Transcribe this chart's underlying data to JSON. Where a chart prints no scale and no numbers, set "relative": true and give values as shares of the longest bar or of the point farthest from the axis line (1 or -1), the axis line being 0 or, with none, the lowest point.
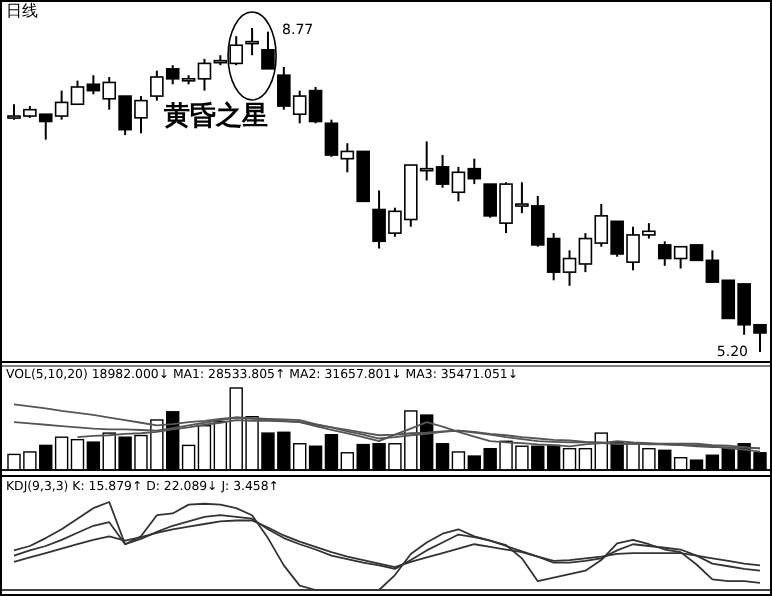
{
  "chart_data": [
    {
      "type": "candlestick",
      "title": "日线",
      "categories": [
        null,
        null,
        null,
        null,
        null,
        null,
        null,
        null,
        null,
        null,
        null,
        null,
        null,
        null,
        null,
        null,
        null,
        null,
        null,
        null,
        null,
        null,
        null,
        null,
        null,
        null,
        null,
        null,
        null,
        null,
        null,
        null,
        null,
        null,
        null,
        null,
        null,
        null,
        null,
        null,
        null,
        null,
        null,
        null,
        null,
        null,
        null,
        null
      ],
      "ohlc": [
        [
          7.8,
          7.93,
          7.76,
          7.8
        ],
        [
          7.8,
          7.91,
          7.78,
          7.87
        ],
        [
          7.82,
          7.82,
          7.54,
          7.74
        ],
        [
          7.8,
          8.08,
          7.76,
          7.95
        ],
        [
          7.93,
          8.19,
          7.93,
          8.12
        ],
        [
          8.15,
          8.25,
          8.04,
          8.08
        ],
        [
          7.99,
          8.23,
          7.87,
          8.17
        ],
        [
          8.02,
          8.02,
          7.59,
          7.65
        ],
        [
          7.78,
          8.02,
          7.61,
          7.97
        ],
        [
          8.02,
          8.3,
          7.97,
          8.23
        ],
        [
          8.32,
          8.36,
          8.15,
          8.21
        ],
        [
          8.21,
          8.25,
          8.15,
          8.21
        ],
        [
          8.21,
          8.43,
          8.08,
          8.38
        ],
        [
          8.4,
          8.47,
          8.36,
          8.41
        ],
        [
          8.38,
          8.68,
          8.36,
          8.58
        ],
        [
          8.62,
          8.77,
          8.47,
          8.62
        ],
        [
          8.53,
          8.73,
          8.32,
          8.32
        ],
        [
          8.25,
          8.34,
          7.87,
          7.91
        ],
        [
          7.82,
          8.08,
          7.72,
          8.02
        ],
        [
          8.08,
          8.12,
          7.72,
          7.74
        ],
        [
          7.72,
          7.76,
          7.35,
          7.37
        ],
        [
          7.33,
          7.5,
          7.18,
          7.41
        ],
        [
          7.41,
          7.41,
          6.86,
          6.86
        ],
        [
          6.77,
          6.98,
          6.34,
          6.42
        ],
        [
          6.51,
          6.79,
          6.47,
          6.75
        ],
        [
          6.66,
          7.26,
          6.58,
          7.26
        ],
        [
          7.22,
          7.52,
          7.09,
          7.22
        ],
        [
          7.24,
          7.37,
          7.01,
          7.05
        ],
        [
          6.96,
          7.24,
          6.86,
          7.18
        ],
        [
          7.22,
          7.33,
          7.05,
          7.11
        ],
        [
          7.05,
          7.05,
          6.68,
          6.7
        ],
        [
          6.62,
          7.07,
          6.51,
          7.05
        ],
        [
          6.83,
          7.07,
          6.73,
          6.83
        ],
        [
          6.81,
          6.92,
          6.36,
          6.38
        ],
        [
          6.45,
          6.51,
          5.99,
          6.08
        ],
        [
          6.08,
          6.32,
          5.93,
          6.23
        ],
        [
          6.17,
          6.51,
          6.08,
          6.45
        ],
        [
          6.4,
          6.83,
          6.36,
          6.7
        ],
        [
          6.64,
          6.64,
          6.25,
          6.28
        ],
        [
          6.19,
          6.58,
          6.1,
          6.49
        ],
        [
          6.49,
          6.62,
          6.45,
          6.53
        ],
        [
          6.38,
          6.42,
          6.15,
          6.23
        ],
        [
          6.23,
          6.36,
          6.12,
          6.36
        ],
        [
          6.38,
          6.38,
          6.21,
          6.21
        ],
        [
          6.21,
          6.32,
          5.97,
          5.97
        ],
        [
          5.99,
          5.99,
          5.57,
          5.57
        ],
        [
          5.95,
          5.95,
          5.39,
          5.5
        ],
        [
          5.5,
          5.5,
          5.2,
          5.41
        ]
      ],
      "annotations": [
        "8.77",
        "5.20",
        "黄昏之星"
      ]
    },
    {
      "type": "bar",
      "relative": true,
      "title": "VOL(5,10,20) 18982.000↓ MA1: 28533.805↑ MA2: 31657.801↓ MA3: 35471.051↓",
      "categories": [
        null,
        null,
        null,
        null,
        null,
        null,
        null,
        null,
        null,
        null,
        null,
        null,
        null,
        null,
        null,
        null,
        null,
        null,
        null,
        null,
        null,
        null,
        null,
        null,
        null,
        null,
        null,
        null,
        null,
        null,
        null,
        null,
        null,
        null,
        null,
        null,
        null,
        null,
        null,
        null,
        null,
        null,
        null,
        null,
        null,
        null,
        null,
        null
      ],
      "values": [
        0.19,
        0.22,
        0.3,
        0.4,
        0.37,
        0.34,
        0.45,
        0.4,
        0.42,
        0.61,
        0.71,
        0.3,
        0.54,
        0.59,
        1,
        0.65,
        0.45,
        0.46,
        0.32,
        0.29,
        0.43,
        0.21,
        0.31,
        0.32,
        0.32,
        0.72,
        0.67,
        0.32,
        0.22,
        0.17,
        0.26,
        0.35,
        0.29,
        0.29,
        0.3,
        0.26,
        0.26,
        0.45,
        0.34,
        0.33,
        0.26,
        0.24,
        0.15,
        0.12,
        0.18,
        0.26,
        0.32,
        0.21
      ],
      "colors": [
        "#ffffff",
        "#ffffff",
        "#000000",
        "#ffffff",
        "#ffffff",
        "#000000",
        "#ffffff",
        "#000000",
        "#ffffff",
        "#ffffff",
        "#000000",
        "#ffffff",
        "#ffffff",
        "#ffffff",
        "#ffffff",
        "#ffffff",
        "#000000",
        "#000000",
        "#ffffff",
        "#000000",
        "#000000",
        "#ffffff",
        "#000000",
        "#000000",
        "#ffffff",
        "#ffffff",
        "#000000",
        "#000000",
        "#ffffff",
        "#000000",
        "#000000",
        "#ffffff",
        "#ffffff",
        "#000000",
        "#000000",
        "#ffffff",
        "#ffffff",
        "#ffffff",
        "#000000",
        "#ffffff",
        "#ffffff",
        "#000000",
        "#ffffff",
        "#000000",
        "#000000",
        "#000000",
        "#000000",
        "#000000"
      ]
    },
    {
      "type": "line",
      "relative": true,
      "categories": [
        null,
        null,
        null,
        null,
        null,
        null,
        null,
        null,
        null,
        null,
        null,
        null,
        null,
        null,
        null,
        null,
        null,
        null,
        null,
        null,
        null,
        null,
        null,
        null,
        null,
        null,
        null,
        null,
        null,
        null,
        null,
        null,
        null,
        null,
        null,
        null,
        null,
        null,
        null,
        null,
        null,
        null,
        null,
        null,
        null,
        null,
        null,
        null
      ],
      "series": [
        {
          "color": "#555555",
          "values": [
            null,
            null,
            null,
            null,
            0.5,
            0.52,
            0.53,
            0.55,
            0.56,
            0.58,
            0.62,
            0.65,
            0.69,
            0.72,
            0.76,
            0.75,
            0.75,
            0.74,
            0.73,
            0.67,
            0.61,
            0.56,
            0.5,
            0.44,
            0.54,
            0.63,
            0.73,
            0.66,
            0.58,
            0.51,
            0.44,
            0.42,
            0.41,
            0.39,
            0.38,
            0.36,
            0.39,
            0.41,
            0.44,
            0.42,
            0.41,
            0.39,
            0.38,
            0.36,
            0.35,
            0.35,
            0.34,
            0.33
          ]
        },
        {
          "color": "#555555",
          "values": [
            0.73,
            0.71,
            0.69,
            0.67,
            0.65,
            0.63,
            0.62,
            0.62,
            0.61,
            0.6,
            0.64,
            0.68,
            0.72,
            0.76,
            0.8,
            0.79,
            0.78,
            0.77,
            0.76,
            0.7,
            0.65,
            0.59,
            0.54,
            0.48,
            0.5,
            0.53,
            0.55,
            0.58,
            0.6,
            0.58,
            0.55,
            0.53,
            0.5,
            0.48,
            0.46,
            0.45,
            0.43,
            0.42,
            0.4,
            0.4,
            0.39,
            0.39,
            0.38,
            0.38,
            0.36,
            0.33,
            0.31,
            0.28
          ]
        },
        {
          "color": "#555555",
          "values": [
            1,
            0.97,
            0.94,
            0.9,
            0.87,
            0.84,
            0.8,
            0.76,
            0.72,
            0.68,
            0.7,
            0.73,
            0.75,
            0.78,
            0.8,
            0.78,
            0.77,
            0.75,
            0.73,
            0.69,
            0.65,
            0.61,
            0.57,
            0.53,
            0.54,
            0.56,
            0.57,
            0.59,
            0.6,
            0.57,
            0.54,
            0.5,
            0.47,
            0.44,
            0.43,
            0.42,
            0.42,
            0.41,
            0.4,
            0.4,
            0.4,
            0.4,
            0.4,
            0.4,
            0.38,
            0.37,
            0.35,
            0.33
          ]
        }
      ]
    },
    {
      "type": "line",
      "relative": true,
      "title": "KDJ(9,3,3) K: 15.879↑ D: 22.089↓ J: 3.458↑",
      "categories": [
        null,
        null,
        null,
        null,
        null,
        null,
        null,
        null,
        null,
        null,
        null,
        null,
        null,
        null,
        null,
        null,
        null,
        null,
        null,
        null,
        null,
        null,
        null,
        null,
        null,
        null,
        null,
        null,
        null,
        null,
        null,
        null,
        null,
        null,
        null,
        null,
        null,
        null,
        null,
        null,
        null,
        null,
        null,
        null,
        null,
        null,
        null,
        null
      ],
      "series": [
        {
          "color": "#333333",
          "values": [
            0.45,
            0.5,
            0.59,
            0.69,
            0.81,
            0.93,
            1,
            0.52,
            0.61,
            0.85,
            0.87,
            0.97,
            0.98,
            0.97,
            0.93,
            0.85,
            0.59,
            0.28,
            0.05,
            0,
            0,
            0,
            0,
            0,
            0.17,
            0.41,
            0.54,
            0.64,
            0.69,
            0.61,
            0.56,
            0.51,
            0.36,
            0.1,
            0.14,
            0.18,
            0.22,
            0.34,
            0.53,
            0.57,
            0.52,
            0.46,
            0.43,
            0.29,
            0.12,
            0.1,
            0.1,
            0.08
          ]
        },
        {
          "color": "#333333",
          "values": [
            0.39,
            0.45,
            0.5,
            0.57,
            0.65,
            0.73,
            0.77,
            0.52,
            0.58,
            0.66,
            0.73,
            0.78,
            0.83,
            0.85,
            0.83,
            0.81,
            0.69,
            0.59,
            0.52,
            0.46,
            0.39,
            0.35,
            0.31,
            0.28,
            0.24,
            0.34,
            0.45,
            0.54,
            0.63,
            0.6,
            0.56,
            0.5,
            0.44,
            0.38,
            0.31,
            0.31,
            0.33,
            0.36,
            0.45,
            0.52,
            0.5,
            0.48,
            0.46,
            0.39,
            0.3,
            0.27,
            0.24,
            0.22
          ]
        },
        {
          "color": "#333333",
          "values": [
            0.32,
            0.37,
            0.42,
            0.47,
            0.52,
            0.57,
            0.61,
            0.56,
            0.6,
            0.65,
            0.69,
            0.72,
            0.75,
            0.78,
            0.79,
            0.79,
            0.71,
            0.62,
            0.55,
            0.49,
            0.43,
            0.38,
            0.34,
            0.3,
            0.26,
            0.32,
            0.37,
            0.42,
            0.47,
            0.52,
            0.49,
            0.46,
            0.43,
            0.38,
            0.33,
            0.34,
            0.36,
            0.38,
            0.41,
            0.42,
            0.42,
            0.42,
            0.42,
            0.39,
            0.36,
            0.33,
            0.3,
            0.28
          ]
        }
      ]
    }
  ]
}
